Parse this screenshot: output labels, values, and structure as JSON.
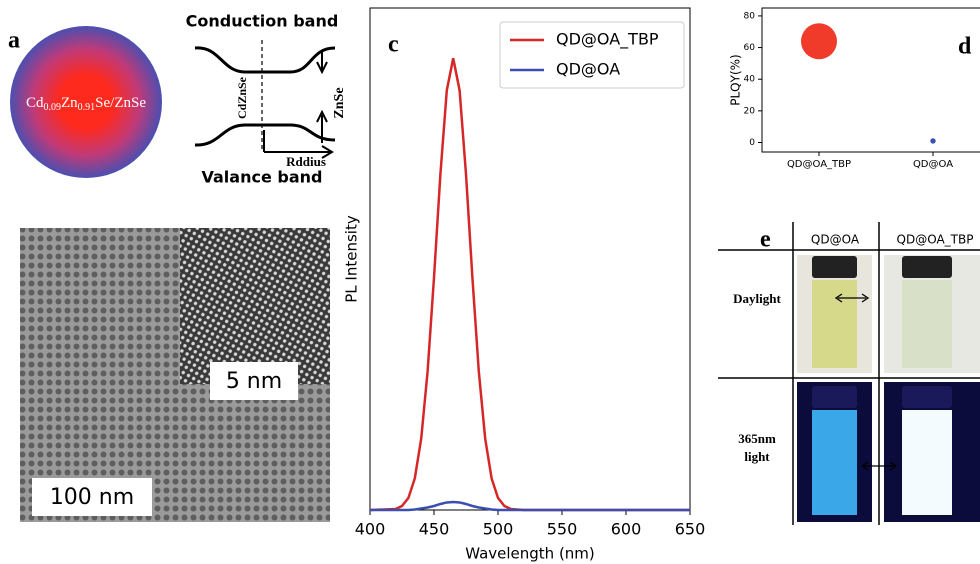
{
  "panel_a": {
    "label": "a",
    "composition": [
      "Cd",
      "0.09",
      "Zn",
      "0.91",
      "Se/ZnSe"
    ],
    "conduction": "Conduction band",
    "valance": "Valance band",
    "core": "CdZnSe",
    "shell": "ZnSe",
    "radius": "Rddius",
    "inset_scale": "5 nm",
    "scale": "100 nm"
  },
  "chart_data": [
    {
      "type": "line",
      "label": "c",
      "xlabel": "Wavelength (nm)",
      "ylabel": "PL Intensity",
      "x": [
        400,
        420,
        425,
        430,
        435,
        440,
        445,
        450,
        455,
        460,
        465,
        470,
        475,
        480,
        485,
        490,
        495,
        500,
        505,
        510,
        520,
        550,
        600,
        650
      ],
      "series": [
        {
          "name": "QD@OA_TBP",
          "color": "#d62728",
          "values": [
            0,
            0.002,
            0.008,
            0.024,
            0.063,
            0.142,
            0.276,
            0.463,
            0.669,
            0.836,
            0.9,
            0.836,
            0.669,
            0.463,
            0.276,
            0.142,
            0.063,
            0.024,
            0.008,
            0.002,
            0,
            0,
            0,
            0
          ]
        },
        {
          "name": "QD@OA",
          "color": "#3a4fb0",
          "values": [
            0,
            0,
            0,
            0,
            0.001,
            0.003,
            0.005,
            0.008,
            0.012,
            0.015,
            0.016,
            0.015,
            0.012,
            0.008,
            0.005,
            0.003,
            0.001,
            0,
            0,
            0,
            0,
            0,
            0,
            0
          ]
        }
      ],
      "xlim": [
        400,
        650
      ],
      "xticks": [
        400,
        450,
        500,
        550,
        600,
        650
      ],
      "ylim": [
        0,
        1
      ],
      "legend": "upper right"
    },
    {
      "type": "scatter",
      "label": "d",
      "ylabel": "PLQY(%)",
      "categories": [
        "QD@OA_TBP",
        "QD@OA"
      ],
      "values": [
        64,
        1
      ],
      "colors": [
        "#f03a2a",
        "#3a4fb0"
      ],
      "marker_sizes": [
        900,
        20
      ],
      "ylim": [
        -6,
        85
      ],
      "yticks": [
        0,
        20,
        40,
        60,
        80
      ]
    }
  ],
  "panel_e": {
    "label": "e",
    "columns": [
      "QD@OA",
      "QD@OA_TBP"
    ],
    "rows": [
      [
        "Daylight"
      ],
      [
        "365nm",
        "light"
      ]
    ]
  }
}
